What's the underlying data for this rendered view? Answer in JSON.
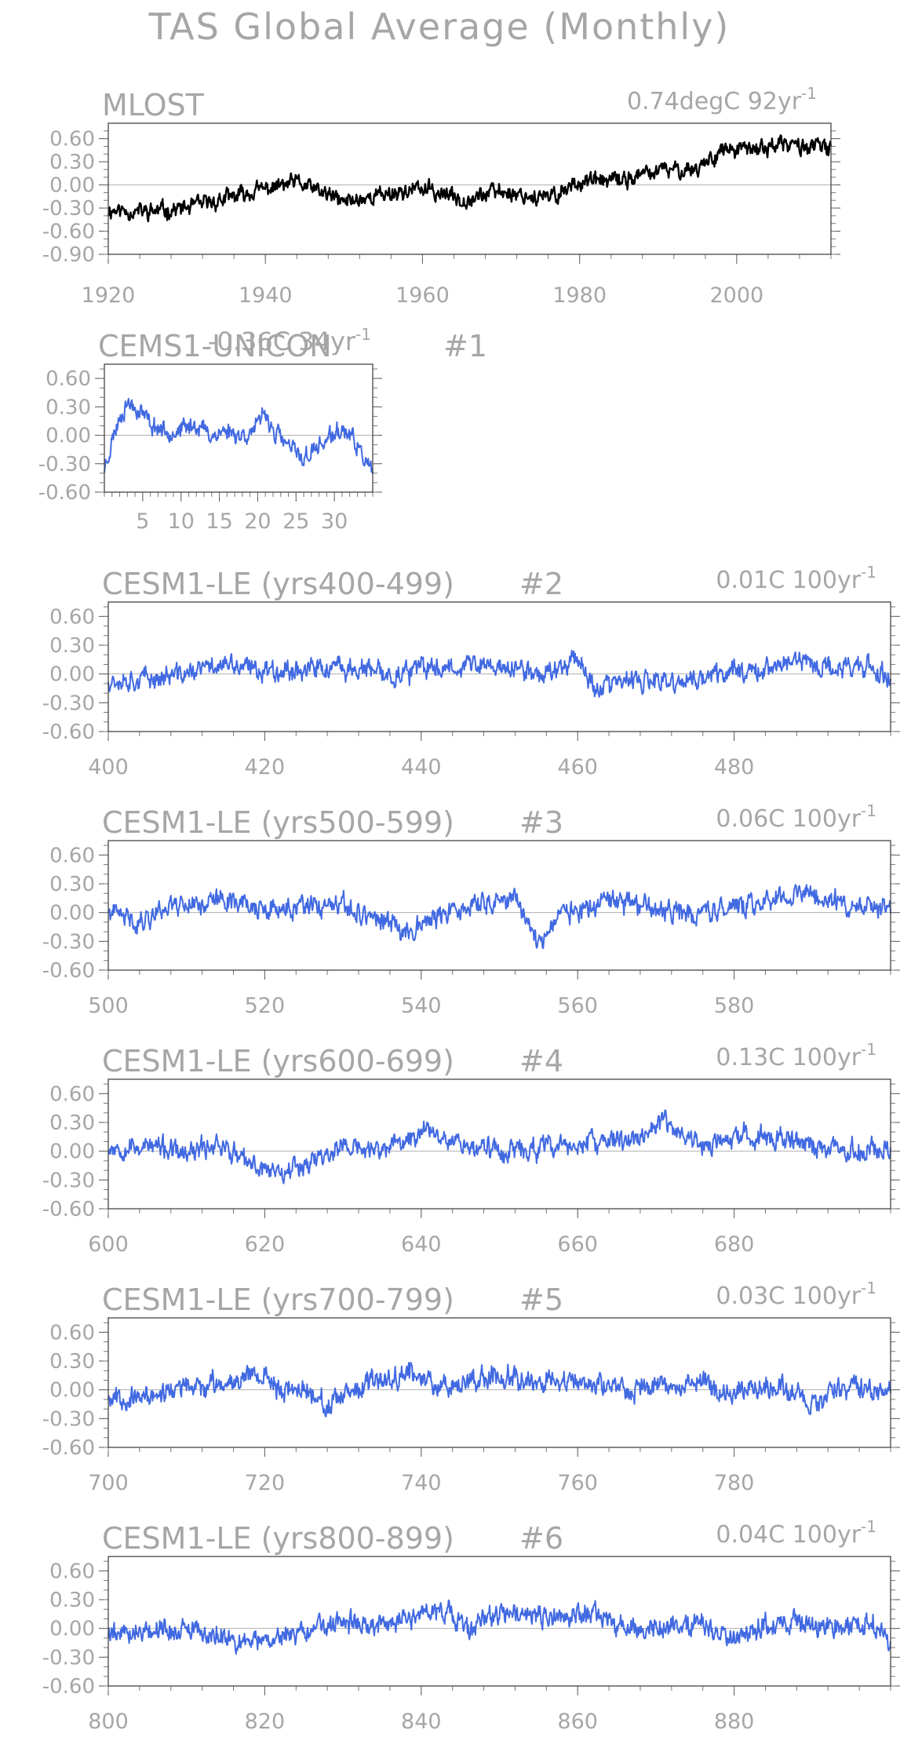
{
  "figure": {
    "title": "TAS Global Average (Monthly)"
  },
  "chart_data": [
    {
      "type": "line",
      "name": "MLOST",
      "title": "MLOST",
      "trend_label": "0.74degC 92yr",
      "trend_exp": "-1",
      "color": "#000000",
      "xlim": [
        1920,
        2012
      ],
      "ylim": [
        -0.9,
        0.8
      ],
      "yticks": [
        "0.60",
        "0.30",
        "0.00",
        "-0.30",
        "-0.60",
        "-0.90"
      ],
      "xticks": [
        "1920",
        "1940",
        "1960",
        "1980",
        "2000"
      ],
      "xtick_values": [
        1920,
        1940,
        1960,
        1980,
        2000
      ],
      "x_start": 1920,
      "x_end": 2012,
      "keys": [
        [
          1920,
          -0.32
        ],
        [
          1925,
          -0.35
        ],
        [
          1930,
          -0.3
        ],
        [
          1935,
          -0.18
        ],
        [
          1940,
          -0.05
        ],
        [
          1944,
          0.03
        ],
        [
          1950,
          -0.22
        ],
        [
          1955,
          -0.12
        ],
        [
          1960,
          -0.05
        ],
        [
          1965,
          -0.18
        ],
        [
          1970,
          -0.08
        ],
        [
          1976,
          -0.18
        ],
        [
          1980,
          0.05
        ],
        [
          1985,
          0.05
        ],
        [
          1990,
          0.18
        ],
        [
          1995,
          0.22
        ],
        [
          1998,
          0.45
        ],
        [
          2002,
          0.45
        ],
        [
          2005,
          0.52
        ],
        [
          2010,
          0.5
        ],
        [
          2012,
          0.45
        ]
      ],
      "noise": 0.1,
      "spike": 0.05,
      "seed": 11,
      "grid": false
    },
    {
      "type": "line",
      "name": "CEMS1-UNICON",
      "title": "CEMS1-UNICON",
      "trend_label": "-0.36C 34yr",
      "trend_exp": "-1",
      "member": "#1",
      "color": "#4169e1",
      "xlim": [
        0,
        35
      ],
      "ylim": [
        -0.6,
        0.75
      ],
      "yticks": [
        "0.60",
        "0.30",
        "0.00",
        "-0.30",
        "-0.60"
      ],
      "xticks": [
        "5",
        "10",
        "15",
        "20",
        "25",
        "30"
      ],
      "xtick_values": [
        5,
        10,
        15,
        20,
        25,
        30
      ],
      "x_start": 0,
      "x_end": 35,
      "keys": [
        [
          0,
          -0.35
        ],
        [
          1,
          -0.05
        ],
        [
          2,
          0.2
        ],
        [
          3,
          0.35
        ],
        [
          4,
          0.3
        ],
        [
          5,
          0.25
        ],
        [
          6,
          0.12
        ],
        [
          8,
          0.05
        ],
        [
          10,
          0.05
        ],
        [
          12,
          0.12
        ],
        [
          14,
          0.0
        ],
        [
          16,
          0.05
        ],
        [
          18,
          0.0
        ],
        [
          20,
          0.08
        ],
        [
          21,
          0.25
        ],
        [
          22,
          0.05
        ],
        [
          24,
          -0.12
        ],
        [
          26,
          -0.25
        ],
        [
          27,
          -0.18
        ],
        [
          29,
          -0.05
        ],
        [
          31,
          0.05
        ],
        [
          32,
          0.0
        ],
        [
          34,
          -0.25
        ],
        [
          35,
          -0.45
        ]
      ],
      "noise": 0.09,
      "spike": 0.05,
      "seed": 23,
      "grid": false
    },
    {
      "type": "line",
      "name": "CESM1-LE (yrs400-499)",
      "title": "CESM1-LE (yrs400-499)",
      "member": "#2",
      "trend_label": "0.01C 100yr",
      "trend_exp": "-1",
      "color": "#4169e1",
      "xlim": [
        400,
        500
      ],
      "ylim": [
        -0.6,
        0.75
      ],
      "yticks": [
        "0.60",
        "0.30",
        "0.00",
        "-0.30",
        "-0.60"
      ],
      "xticks": [
        "400",
        "420",
        "440",
        "460",
        "480"
      ],
      "xtick_values": [
        400,
        420,
        440,
        460,
        480
      ],
      "x_start": 400,
      "x_end": 500,
      "keys": [
        [
          400,
          -0.05
        ],
        [
          405,
          -0.05
        ],
        [
          410,
          0.0
        ],
        [
          414,
          0.1
        ],
        [
          418,
          0.05
        ],
        [
          422,
          0.05
        ],
        [
          428,
          0.05
        ],
        [
          432,
          0.05
        ],
        [
          436,
          -0.02
        ],
        [
          440,
          0.05
        ],
        [
          446,
          0.1
        ],
        [
          452,
          0.05
        ],
        [
          456,
          0.0
        ],
        [
          460,
          0.2
        ],
        [
          462,
          -0.15
        ],
        [
          466,
          -0.08
        ],
        [
          472,
          -0.1
        ],
        [
          476,
          -0.05
        ],
        [
          480,
          0.05
        ],
        [
          484,
          0.05
        ],
        [
          488,
          0.15
        ],
        [
          492,
          0.05
        ],
        [
          496,
          0.1
        ],
        [
          500,
          -0.05
        ]
      ],
      "noise": 0.1,
      "spike": 0.06,
      "seed": 37,
      "grid": false
    },
    {
      "type": "line",
      "name": "CESM1-LE (yrs500-599)",
      "title": "CESM1-LE (yrs500-599)",
      "member": "#3",
      "trend_label": "0.06C 100yr",
      "trend_exp": "-1",
      "color": "#4169e1",
      "xlim": [
        500,
        600
      ],
      "ylim": [
        -0.6,
        0.75
      ],
      "yticks": [
        "0.60",
        "0.30",
        "0.00",
        "-0.30",
        "-0.60"
      ],
      "xticks": [
        "500",
        "520",
        "540",
        "560",
        "580"
      ],
      "xtick_values": [
        500,
        520,
        540,
        560,
        580
      ],
      "x_start": 500,
      "x_end": 600,
      "keys": [
        [
          500,
          0.0
        ],
        [
          504,
          -0.1
        ],
        [
          508,
          0.1
        ],
        [
          512,
          0.1
        ],
        [
          516,
          0.15
        ],
        [
          520,
          0.0
        ],
        [
          524,
          0.05
        ],
        [
          530,
          0.05
        ],
        [
          534,
          -0.05
        ],
        [
          538,
          -0.2
        ],
        [
          540,
          -0.1
        ],
        [
          544,
          0.0
        ],
        [
          548,
          0.1
        ],
        [
          552,
          0.15
        ],
        [
          555,
          -0.3
        ],
        [
          558,
          0.0
        ],
        [
          562,
          0.05
        ],
        [
          567,
          0.12
        ],
        [
          570,
          0.0
        ],
        [
          576,
          0.0
        ],
        [
          580,
          0.05
        ],
        [
          585,
          0.15
        ],
        [
          590,
          0.2
        ],
        [
          596,
          0.05
        ],
        [
          600,
          0.0
        ]
      ],
      "noise": 0.1,
      "spike": 0.06,
      "seed": 41,
      "grid": false
    },
    {
      "type": "line",
      "name": "CESM1-LE (yrs600-699)",
      "title": "CESM1-LE (yrs600-699)",
      "member": "#4",
      "trend_label": "0.13C 100yr",
      "trend_exp": "-1",
      "color": "#4169e1",
      "xlim": [
        600,
        700
      ],
      "ylim": [
        -0.6,
        0.75
      ],
      "yticks": [
        "0.60",
        "0.30",
        "0.00",
        "-0.30",
        "-0.60"
      ],
      "xticks": [
        "600",
        "620",
        "640",
        "660",
        "680"
      ],
      "xtick_values": [
        600,
        620,
        640,
        660,
        680
      ],
      "x_start": 600,
      "x_end": 700,
      "keys": [
        [
          600,
          0.05
        ],
        [
          606,
          0.05
        ],
        [
          610,
          -0.05
        ],
        [
          614,
          0.1
        ],
        [
          618,
          -0.15
        ],
        [
          622,
          -0.2
        ],
        [
          626,
          -0.1
        ],
        [
          630,
          0.05
        ],
        [
          634,
          0.0
        ],
        [
          638,
          0.1
        ],
        [
          641,
          0.25
        ],
        [
          646,
          0.05
        ],
        [
          652,
          0.0
        ],
        [
          658,
          0.05
        ],
        [
          664,
          0.1
        ],
        [
          668,
          0.15
        ],
        [
          671,
          0.3
        ],
        [
          676,
          0.05
        ],
        [
          682,
          0.15
        ],
        [
          686,
          0.15
        ],
        [
          690,
          0.05
        ],
        [
          696,
          0.0
        ],
        [
          700,
          0.05
        ]
      ],
      "noise": 0.1,
      "spike": 0.06,
      "seed": 53,
      "grid": false
    },
    {
      "type": "line",
      "name": "CESM1-LE (yrs700-799)",
      "title": "CESM1-LE (yrs700-799)",
      "member": "#5",
      "trend_label": "0.03C 100yr",
      "trend_exp": "-1",
      "color": "#4169e1",
      "xlim": [
        700,
        800
      ],
      "ylim": [
        -0.6,
        0.75
      ],
      "yticks": [
        "0.60",
        "0.30",
        "0.00",
        "-0.30",
        "-0.60"
      ],
      "xticks": [
        "700",
        "720",
        "740",
        "760",
        "780"
      ],
      "xtick_values": [
        700,
        720,
        740,
        760,
        780
      ],
      "x_start": 700,
      "x_end": 800,
      "keys": [
        [
          700,
          -0.05
        ],
        [
          704,
          -0.1
        ],
        [
          708,
          0.0
        ],
        [
          714,
          0.05
        ],
        [
          719,
          0.2
        ],
        [
          722,
          0.0
        ],
        [
          726,
          0.0
        ],
        [
          728,
          -0.2
        ],
        [
          732,
          0.0
        ],
        [
          738,
          0.2
        ],
        [
          742,
          0.05
        ],
        [
          746,
          0.1
        ],
        [
          750,
          0.15
        ],
        [
          756,
          0.1
        ],
        [
          762,
          0.05
        ],
        [
          766,
          0.0
        ],
        [
          772,
          0.05
        ],
        [
          776,
          0.1
        ],
        [
          778,
          -0.05
        ],
        [
          782,
          0.0
        ],
        [
          786,
          0.05
        ],
        [
          790,
          -0.15
        ],
        [
          794,
          0.05
        ],
        [
          800,
          -0.05
        ]
      ],
      "noise": 0.1,
      "spike": 0.06,
      "seed": 67,
      "grid": false
    },
    {
      "type": "line",
      "name": "CESM1-LE (yrs800-899)",
      "title": "CESM1-LE (yrs800-899)",
      "member": "#6",
      "trend_label": "0.04C 100yr",
      "trend_exp": "-1",
      "color": "#4169e1",
      "xlim": [
        800,
        900
      ],
      "ylim": [
        -0.6,
        0.75
      ],
      "yticks": [
        "0.60",
        "0.30",
        "0.00",
        "-0.30",
        "-0.60"
      ],
      "xticks": [
        "800",
        "820",
        "840",
        "860",
        "880"
      ],
      "xtick_values": [
        800,
        820,
        840,
        860,
        880
      ],
      "x_start": 800,
      "x_end": 900,
      "keys": [
        [
          800,
          -0.05
        ],
        [
          806,
          0.0
        ],
        [
          812,
          -0.05
        ],
        [
          818,
          -0.15
        ],
        [
          824,
          -0.05
        ],
        [
          830,
          0.05
        ],
        [
          836,
          0.05
        ],
        [
          842,
          0.2
        ],
        [
          846,
          0.0
        ],
        [
          850,
          0.15
        ],
        [
          856,
          0.1
        ],
        [
          862,
          0.15
        ],
        [
          866,
          0.0
        ],
        [
          872,
          0.0
        ],
        [
          876,
          0.05
        ],
        [
          880,
          -0.1
        ],
        [
          884,
          0.05
        ],
        [
          890,
          0.05
        ],
        [
          894,
          0.0
        ],
        [
          898,
          0.05
        ],
        [
          900,
          -0.15
        ]
      ],
      "noise": 0.1,
      "spike": 0.06,
      "seed": 79,
      "grid": false
    }
  ]
}
